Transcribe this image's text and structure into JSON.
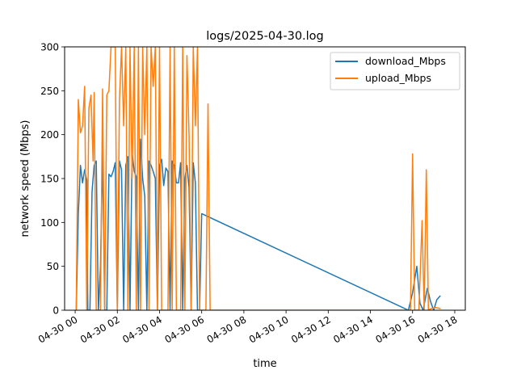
{
  "chart_data": {
    "type": "line",
    "title": "logs/2025-04-30.log",
    "xlabel": "time",
    "ylabel": "network speed (Mbps)",
    "xlim": [
      -0.5,
      18.5
    ],
    "ylim": [
      0,
      300
    ],
    "x_unit": "hours since 2025-04-30 00:00",
    "x_ticks": [
      {
        "value": 0,
        "label": "04-30 00"
      },
      {
        "value": 2,
        "label": "04-30 02"
      },
      {
        "value": 4,
        "label": "04-30 04"
      },
      {
        "value": 6,
        "label": "04-30 06"
      },
      {
        "value": 8,
        "label": "04-30 08"
      },
      {
        "value": 10,
        "label": "04-30 10"
      },
      {
        "value": 12,
        "label": "04-30 12"
      },
      {
        "value": 14,
        "label": "04-30 14"
      },
      {
        "value": 16,
        "label": "04-30 16"
      },
      {
        "value": 18,
        "label": "04-30 18"
      }
    ],
    "y_ticks": [
      0,
      50,
      100,
      150,
      200,
      250,
      300
    ],
    "grid": false,
    "legend": "top-right",
    "series": [
      {
        "name": "download_Mbps",
        "color": "#1f77b4",
        "points": [
          [
            0.05,
            0
          ],
          [
            0.15,
            110
          ],
          [
            0.25,
            165
          ],
          [
            0.35,
            145
          ],
          [
            0.45,
            160
          ],
          [
            0.55,
            148
          ],
          [
            0.6,
            0
          ],
          [
            0.7,
            0
          ],
          [
            0.8,
            135
          ],
          [
            0.9,
            165
          ],
          [
            1.0,
            170
          ],
          [
            1.1,
            0
          ],
          [
            1.2,
            50
          ],
          [
            1.3,
            178
          ],
          [
            1.4,
            0
          ],
          [
            1.5,
            0
          ],
          [
            1.6,
            155
          ],
          [
            1.7,
            152
          ],
          [
            1.8,
            158
          ],
          [
            1.9,
            168
          ],
          [
            2.0,
            0
          ],
          [
            2.1,
            170
          ],
          [
            2.2,
            160
          ],
          [
            2.3,
            0
          ],
          [
            2.4,
            165
          ],
          [
            2.5,
            175
          ],
          [
            2.6,
            0
          ],
          [
            2.7,
            180
          ],
          [
            2.8,
            158
          ],
          [
            2.9,
            152
          ],
          [
            3.0,
            0
          ],
          [
            3.1,
            195
          ],
          [
            3.2,
            150
          ],
          [
            3.3,
            130
          ],
          [
            3.4,
            0
          ],
          [
            3.5,
            170
          ],
          [
            3.6,
            165
          ],
          [
            3.7,
            158
          ],
          [
            3.8,
            150
          ],
          [
            3.9,
            0
          ],
          [
            4.0,
            165
          ],
          [
            4.1,
            172
          ],
          [
            4.2,
            142
          ],
          [
            4.3,
            162
          ],
          [
            4.4,
            158
          ],
          [
            4.5,
            0
          ],
          [
            4.6,
            170
          ],
          [
            4.7,
            165
          ],
          [
            4.8,
            145
          ],
          [
            4.9,
            145
          ],
          [
            5.0,
            168
          ],
          [
            5.1,
            0
          ],
          [
            5.2,
            150
          ],
          [
            5.3,
            165
          ],
          [
            5.4,
            140
          ],
          [
            5.5,
            0
          ],
          [
            5.6,
            168
          ],
          [
            5.7,
            145
          ],
          [
            5.8,
            0
          ],
          [
            5.9,
            0
          ],
          [
            6.0,
            110
          ],
          [
            15.8,
            0
          ],
          [
            16.0,
            20
          ],
          [
            16.2,
            50
          ],
          [
            16.35,
            8
          ],
          [
            16.5,
            0
          ],
          [
            16.7,
            25
          ],
          [
            16.85,
            10
          ],
          [
            17.0,
            0
          ],
          [
            17.15,
            12
          ],
          [
            17.3,
            16
          ]
        ]
      },
      {
        "name": "upload_Mbps",
        "color": "#ff7f0e",
        "points": [
          [
            0.05,
            0
          ],
          [
            0.15,
            240
          ],
          [
            0.25,
            202
          ],
          [
            0.35,
            210
          ],
          [
            0.45,
            255
          ],
          [
            0.55,
            0
          ],
          [
            0.65,
            230
          ],
          [
            0.75,
            245
          ],
          [
            0.85,
            170
          ],
          [
            0.9,
            248
          ],
          [
            1.0,
            0
          ],
          [
            1.1,
            0
          ],
          [
            1.2,
            0
          ],
          [
            1.3,
            252
          ],
          [
            1.4,
            0
          ],
          [
            1.5,
            245
          ],
          [
            1.6,
            250
          ],
          [
            1.7,
            300
          ],
          [
            1.8,
            300
          ],
          [
            1.9,
            300
          ],
          [
            2.0,
            0
          ],
          [
            2.1,
            240
          ],
          [
            2.2,
            300
          ],
          [
            2.3,
            210
          ],
          [
            2.4,
            300
          ],
          [
            2.5,
            0
          ],
          [
            2.6,
            300
          ],
          [
            2.7,
            150
          ],
          [
            2.8,
            300
          ],
          [
            2.9,
            0
          ],
          [
            3.0,
            300
          ],
          [
            3.1,
            0
          ],
          [
            3.2,
            300
          ],
          [
            3.3,
            200
          ],
          [
            3.4,
            300
          ],
          [
            3.5,
            0
          ],
          [
            3.6,
            300
          ],
          [
            3.7,
            255
          ],
          [
            3.8,
            300
          ],
          [
            3.9,
            0
          ],
          [
            4.0,
            300
          ],
          [
            4.1,
            0
          ],
          [
            4.2,
            0
          ],
          [
            4.3,
            0
          ],
          [
            4.4,
            0
          ],
          [
            4.5,
            300
          ],
          [
            4.6,
            0
          ],
          [
            4.7,
            300
          ],
          [
            4.8,
            0
          ],
          [
            4.9,
            0
          ],
          [
            5.0,
            0
          ],
          [
            5.1,
            300
          ],
          [
            5.2,
            0
          ],
          [
            5.3,
            290
          ],
          [
            5.4,
            200
          ],
          [
            5.5,
            0
          ],
          [
            5.6,
            300
          ],
          [
            5.7,
            210
          ],
          [
            5.8,
            300
          ],
          [
            5.9,
            0
          ],
          [
            6.1,
            0
          ],
          [
            6.2,
            0
          ],
          [
            6.3,
            235
          ],
          [
            6.4,
            0
          ],
          [
            15.8,
            0
          ],
          [
            15.9,
            0
          ],
          [
            16.0,
            178
          ],
          [
            16.1,
            0
          ],
          [
            16.2,
            0
          ],
          [
            16.3,
            0
          ],
          [
            16.45,
            102
          ],
          [
            16.55,
            0
          ],
          [
            16.65,
            160
          ],
          [
            16.75,
            0
          ],
          [
            16.9,
            2
          ],
          [
            17.1,
            3
          ],
          [
            17.3,
            2
          ]
        ]
      }
    ]
  }
}
